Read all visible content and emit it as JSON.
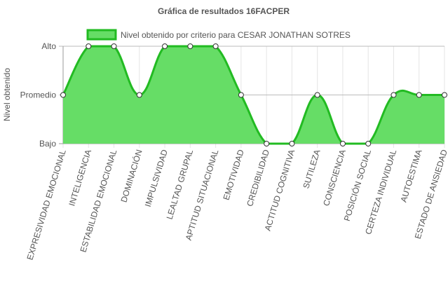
{
  "chart_data": {
    "type": "area",
    "title": "Gráfica de resultados 16FACPER",
    "ylabel": "Nivel obtenido",
    "xlabel": "",
    "y_levels": [
      "Bajo",
      "Promedio",
      "Alto"
    ],
    "ylim": [
      0,
      2
    ],
    "categories": [
      "EXPRESIVIDAD EMOCIONAL",
      "INTELIGENCIA",
      "ESTABILIDAD EMOCIONAL",
      "DOMINACIÓN",
      "IMPULSIVIDAD",
      "LEALTAD GRUPAL",
      "APTITUD SITUACIONAL",
      "EMOTIVIDAD",
      "CREDIBILIDAD",
      "ACTITUD COGNITIVA",
      "SUTILEZA",
      "CONSCIENCIA",
      "POSICIÓN SOCIAL",
      "CERTEZA INDIVIDUAL",
      "AUTOESTIMA",
      "ESTADO DE ANSIEDAD"
    ],
    "series": [
      {
        "name": "Nivel obtenido por criterio para CESAR JONATHAN SOTRES",
        "values": [
          1,
          2,
          2,
          1,
          2,
          2,
          2,
          1,
          0,
          0,
          1,
          0,
          0,
          1,
          1,
          1
        ],
        "fill_color": "#66dd66",
        "line_color": "#22bb22"
      }
    ],
    "grid": true,
    "legend_position": "top"
  },
  "colors": {
    "grid": "#e5e5e5",
    "axis": "#999999",
    "text": "#555555",
    "point_fill": "#ffffff",
    "point_stroke": "#333333"
  }
}
